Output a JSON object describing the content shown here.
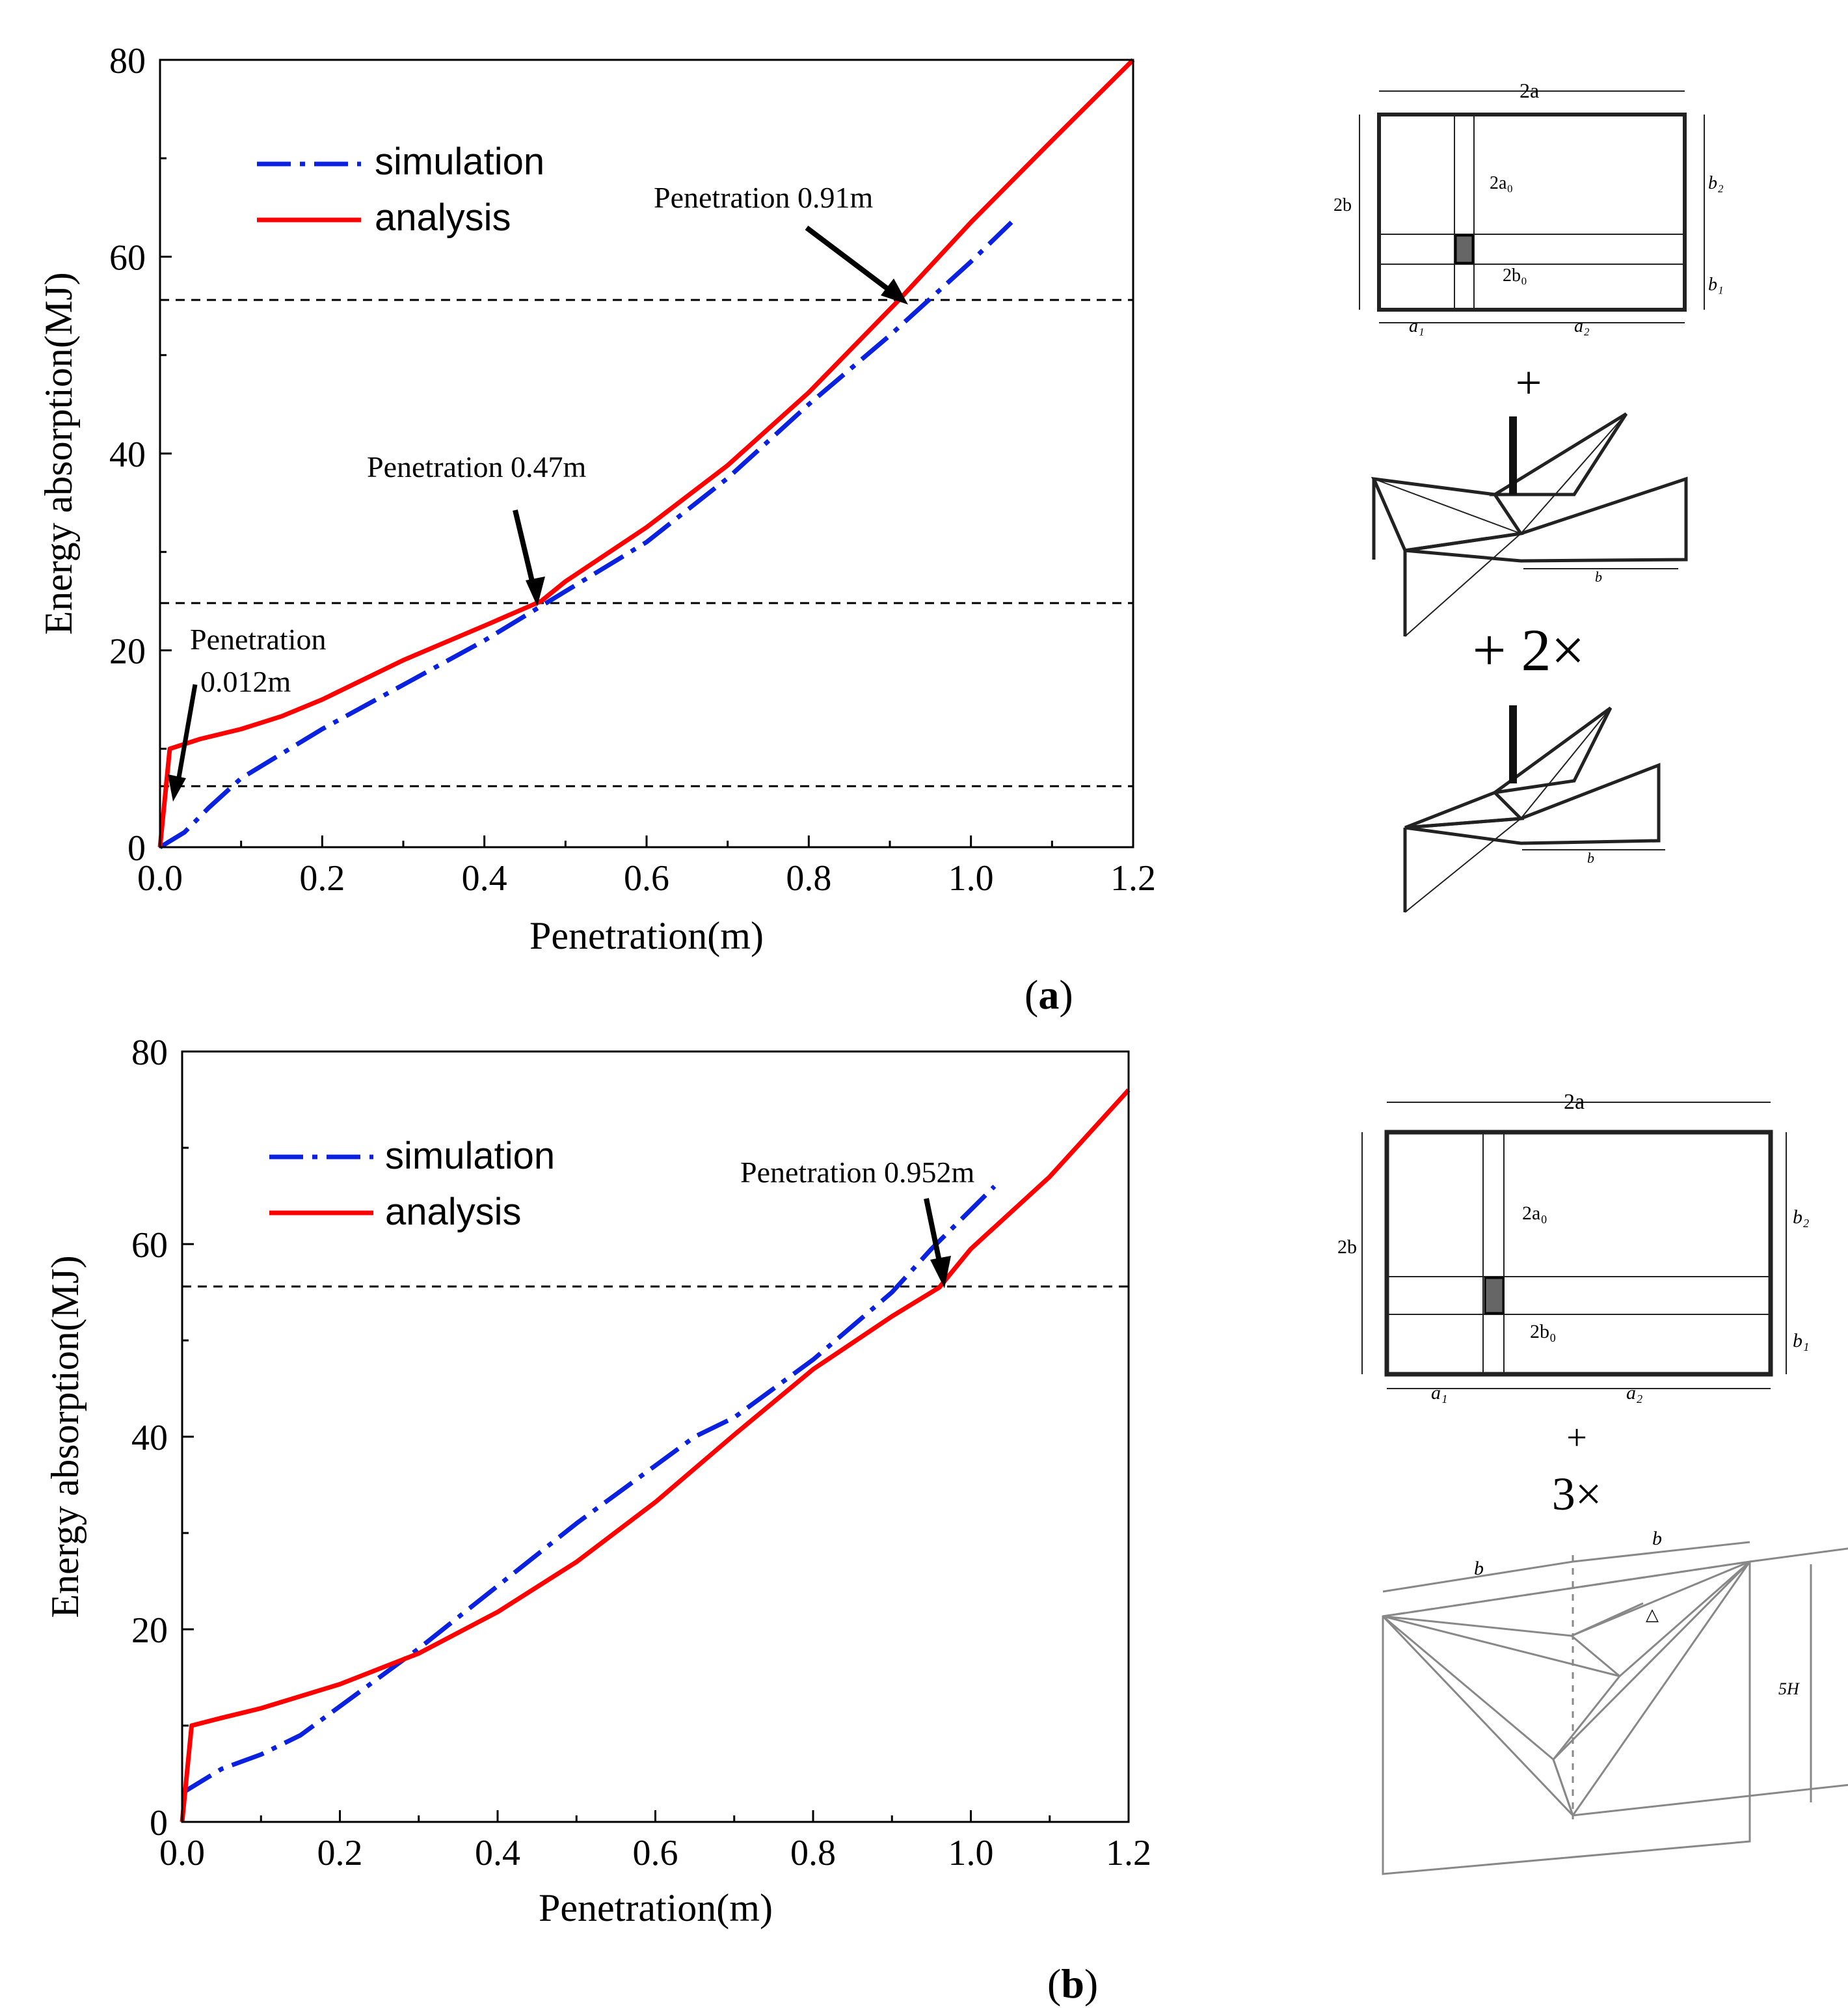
{
  "colors": {
    "simulation": "#0a22e0",
    "analysis": "#ff0000",
    "reference": "#000000",
    "diagram": "#222222",
    "diagram_light": "#888888"
  },
  "panel_labels": {
    "a": "(a)",
    "b": "(b)",
    "a_letter": "a",
    "b_letter": "b"
  },
  "chart_data": [
    {
      "type": "line",
      "panel": "a",
      "xlabel": "Penetration(m)",
      "ylabel": "Energy absorption(MJ)",
      "xlim": [
        0,
        1.2
      ],
      "ylim": [
        0,
        80
      ],
      "xticks": [
        "0.0",
        "0.2",
        "0.4",
        "0.6",
        "0.8",
        "1.0",
        "1.2"
      ],
      "yticks": [
        "0",
        "20",
        "40",
        "60",
        "80"
      ],
      "legend": {
        "placement": "top-left",
        "labels": [
          "simulation",
          "analysis"
        ]
      },
      "series": [
        {
          "name": "simulation",
          "style": "dash-dot",
          "x": [
            0.0,
            0.03,
            0.06,
            0.1,
            0.15,
            0.2,
            0.3,
            0.4,
            0.46,
            0.5,
            0.6,
            0.7,
            0.8,
            0.9,
            1.0,
            1.05
          ],
          "y": [
            0.0,
            1.5,
            4.0,
            7.0,
            9.5,
            12.0,
            16.5,
            21.0,
            24.0,
            26.0,
            31.0,
            37.5,
            45.0,
            52.0,
            59.5,
            63.5
          ]
        },
        {
          "name": "analysis",
          "style": "solid",
          "x": [
            0.0,
            0.012,
            0.05,
            0.1,
            0.15,
            0.2,
            0.3,
            0.4,
            0.47,
            0.5,
            0.6,
            0.7,
            0.8,
            0.91,
            1.0,
            1.1,
            1.2
          ],
          "y": [
            0.0,
            10.0,
            11.0,
            12.0,
            13.3,
            15.0,
            19.0,
            22.5,
            25.0,
            27.0,
            32.5,
            38.8,
            46.2,
            55.5,
            63.5,
            71.8,
            80.0
          ]
        }
      ],
      "reference_lines": [
        6.2,
        24.8,
        55.6
      ],
      "annotations": [
        {
          "lines": [
            "Penetration",
            "0.012m"
          ],
          "point": [
            0.018,
            5.8
          ]
        },
        {
          "lines": [
            "Penetration 0.47m"
          ],
          "point": [
            0.465,
            24.8
          ]
        },
        {
          "lines": [
            "Penetration 0.91m"
          ],
          "point": [
            0.915,
            55.4
          ]
        }
      ]
    },
    {
      "type": "line",
      "panel": "b",
      "xlabel": "Penetration(m)",
      "ylabel": "Energy absorption(MJ)",
      "xlim": [
        0,
        1.2
      ],
      "ylim": [
        0,
        80
      ],
      "xticks": [
        "0.0",
        "0.2",
        "0.4",
        "0.6",
        "0.8",
        "1.0",
        "1.2"
      ],
      "yticks": [
        "0",
        "20",
        "40",
        "60",
        "80"
      ],
      "legend": {
        "placement": "top-left",
        "labels": [
          "simulation",
          "analysis"
        ]
      },
      "series": [
        {
          "name": "simulation",
          "style": "dash-dot",
          "x": [
            0.0,
            0.05,
            0.1,
            0.15,
            0.2,
            0.3,
            0.4,
            0.5,
            0.6,
            0.65,
            0.7,
            0.8,
            0.9,
            0.95,
            1.03
          ],
          "y": [
            3.0,
            5.5,
            7.0,
            9.0,
            12.0,
            18.0,
            24.5,
            31.0,
            37.0,
            40.0,
            42.0,
            48.0,
            55.0,
            59.5,
            66.0
          ]
        },
        {
          "name": "analysis",
          "style": "solid",
          "x": [
            0.0,
            0.012,
            0.05,
            0.1,
            0.2,
            0.3,
            0.4,
            0.5,
            0.6,
            0.7,
            0.8,
            0.9,
            0.96,
            1.0,
            1.1,
            1.2
          ],
          "y": [
            0.0,
            10.0,
            10.8,
            11.8,
            14.3,
            17.5,
            21.8,
            27.0,
            33.2,
            40.2,
            47.0,
            52.5,
            55.5,
            59.5,
            67.0,
            76.0
          ]
        }
      ],
      "reference_lines": [
        55.6
      ],
      "annotations": [
        {
          "lines": [
            "Penetration 0.952m"
          ],
          "point": [
            0.957,
            55.8
          ]
        }
      ]
    }
  ],
  "diagrams": {
    "a": {
      "plate_labels": {
        "width": "2a",
        "height": "2b",
        "load_w": "2a₀",
        "load_h": "2b₀",
        "a1": "a₁",
        "a2": "a₂",
        "b1": "b₁",
        "b2": "b₂"
      },
      "plus1": "+",
      "plus2": "+ 2×",
      "fold_label": "b"
    },
    "b": {
      "plate_labels": {
        "width": "2a",
        "height": "2b",
        "load_w": "2a₀",
        "load_h": "2b₀",
        "a1": "a₁",
        "a2": "a₂",
        "b1": "b₁",
        "b2": "b₂"
      },
      "plus1": "+",
      "times": "3×",
      "fold_labels": {
        "left_b": "b",
        "right_b": "b",
        "height": "5H",
        "delta": "△"
      }
    }
  }
}
